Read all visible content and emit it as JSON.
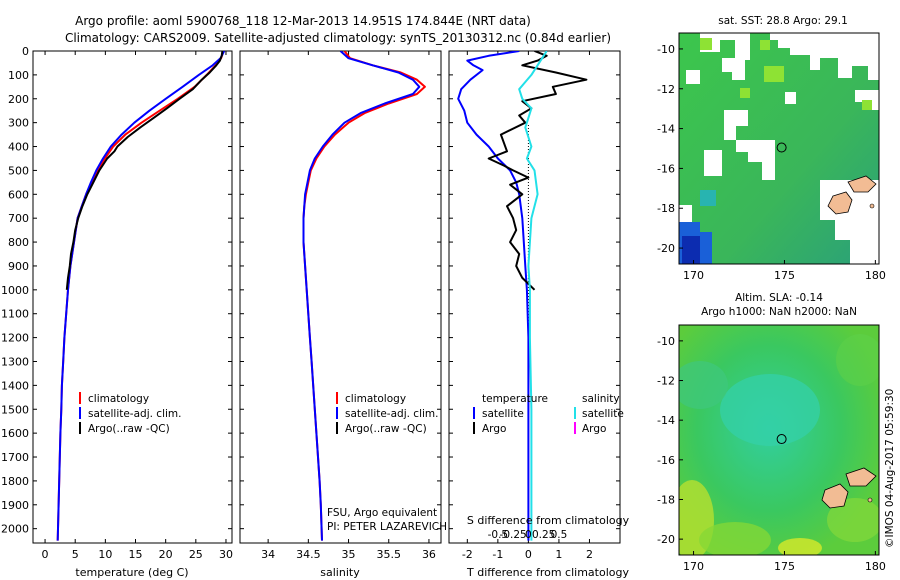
{
  "title": {
    "line1": "Argo profile: aoml 5900768_118 12-Mar-2013 14.951S 174.844E (NRT data)",
    "line2": "Climatology: CARS2009. Satellite-adjusted climatology: synTS_20130312.nc (0.84d earlier)"
  },
  "colors": {
    "climatology": "#ff0000",
    "satellite": "#0000ff",
    "argo": "#000000",
    "sal_satellite": "#22e0e8",
    "sal_argo": "#ff00ff"
  },
  "chart_data": [
    {
      "type": "line",
      "id": "temperature",
      "xlabel": "temperature (deg C)",
      "xlim": [
        -2,
        31
      ],
      "xticks": [
        0,
        5,
        10,
        15,
        20,
        25,
        30
      ],
      "ylim": [
        2060,
        0
      ],
      "yticks": [
        0,
        100,
        200,
        300,
        400,
        500,
        600,
        700,
        800,
        900,
        1000,
        1100,
        1200,
        1300,
        1400,
        1500,
        1600,
        1700,
        1800,
        1900,
        2000
      ],
      "legend": {
        "position": "bottom-right",
        "entries": [
          "climatology",
          "satellite-adj. clim.",
          "Argo(..raw -QC)"
        ]
      },
      "series": [
        {
          "name": "climatology",
          "color": "#ff0000",
          "points": [
            [
              29.6,
              0
            ],
            [
              29.2,
              30
            ],
            [
              28.3,
              60
            ],
            [
              26.8,
              100
            ],
            [
              24.8,
              150
            ],
            [
              22,
              200
            ],
            [
              19,
              250
            ],
            [
              16,
              300
            ],
            [
              13.3,
              350
            ],
            [
              11.3,
              400
            ],
            [
              9.9,
              450
            ],
            [
              8.7,
              500
            ],
            [
              7.7,
              550
            ],
            [
              6.8,
              600
            ],
            [
              6.1,
              650
            ],
            [
              5.4,
              700
            ],
            [
              4.8,
              800
            ],
            [
              4.2,
              900
            ],
            [
              3.8,
              1000
            ],
            [
              3.5,
              1100
            ],
            [
              3.2,
              1200
            ],
            [
              3,
              1300
            ],
            [
              2.8,
              1400
            ],
            [
              2.7,
              1500
            ],
            [
              2.55,
              1600
            ],
            [
              2.45,
              1700
            ],
            [
              2.35,
              1800
            ],
            [
              2.25,
              1900
            ],
            [
              2.15,
              2000
            ],
            [
              2.1,
              2050
            ]
          ]
        },
        {
          "name": "satellite-adj. clim.",
          "color": "#0000ff",
          "points": [
            [
              29.7,
              0
            ],
            [
              29.1,
              30
            ],
            [
              27.8,
              60
            ],
            [
              25.5,
              100
            ],
            [
              22.8,
              150
            ],
            [
              20,
              200
            ],
            [
              17.3,
              250
            ],
            [
              14.8,
              300
            ],
            [
              12.7,
              350
            ],
            [
              10.9,
              400
            ],
            [
              9.6,
              450
            ],
            [
              8.5,
              500
            ],
            [
              7.6,
              550
            ],
            [
              6.8,
              600
            ],
            [
              6.1,
              650
            ],
            [
              5.4,
              700
            ],
            [
              4.8,
              800
            ],
            [
              4.2,
              900
            ],
            [
              3.8,
              1000
            ],
            [
              3.5,
              1100
            ],
            [
              3.2,
              1200
            ],
            [
              3,
              1300
            ],
            [
              2.8,
              1400
            ],
            [
              2.7,
              1500
            ],
            [
              2.55,
              1600
            ],
            [
              2.45,
              1700
            ],
            [
              2.35,
              1800
            ],
            [
              2.25,
              1900
            ],
            [
              2.15,
              2000
            ],
            [
              2.1,
              2050
            ]
          ]
        },
        {
          "name": "Argo(..raw -QC)",
          "color": "#000000",
          "points": [
            [
              29.4,
              0
            ],
            [
              29.3,
              20
            ],
            [
              29,
              40
            ],
            [
              28.4,
              60
            ],
            [
              27.3,
              90
            ],
            [
              26,
              120
            ],
            [
              24.5,
              160
            ],
            [
              22.3,
              200
            ],
            [
              20.2,
              240
            ],
            [
              18,
              280
            ],
            [
              15.8,
              320
            ],
            [
              13.7,
              360
            ],
            [
              12,
              400
            ],
            [
              11.5,
              420
            ],
            [
              10.3,
              450
            ],
            [
              9,
              500
            ],
            [
              8,
              550
            ],
            [
              7,
              600
            ],
            [
              6.2,
              650
            ],
            [
              5.5,
              700
            ],
            [
              5,
              750
            ],
            [
              4.7,
              800
            ],
            [
              4.3,
              850
            ],
            [
              4.1,
              900
            ],
            [
              3.8,
              950
            ],
            [
              3.6,
              1000
            ]
          ]
        }
      ]
    },
    {
      "type": "line",
      "id": "salinity",
      "xlabel": "salinity",
      "xlim": [
        33.65,
        36.15
      ],
      "xticks": [
        34,
        34.5,
        35,
        35.5,
        36
      ],
      "ylim": [
        2060,
        0
      ],
      "legend": {
        "position": "bottom-right",
        "entries": [
          "climatology",
          "satellite-adj. clim.",
          "Argo(..raw -QC)"
        ]
      },
      "annotations": [
        "FSU, Argo equivalent",
        "PI: PETER LAZAREVICH"
      ],
      "series": [
        {
          "name": "climatology",
          "color": "#ff0000",
          "points": [
            [
              34.95,
              0
            ],
            [
              35.02,
              30
            ],
            [
              35.3,
              60
            ],
            [
              35.65,
              90
            ],
            [
              35.85,
              120
            ],
            [
              35.95,
              150
            ],
            [
              35.85,
              180
            ],
            [
              35.5,
              220
            ],
            [
              35.2,
              260
            ],
            [
              35,
              300
            ],
            [
              34.83,
              350
            ],
            [
              34.7,
              400
            ],
            [
              34.6,
              450
            ],
            [
              34.53,
              500
            ],
            [
              34.5,
              550
            ],
            [
              34.47,
              600
            ],
            [
              34.45,
              650
            ],
            [
              34.44,
              700
            ],
            [
              34.44,
              800
            ],
            [
              34.46,
              900
            ],
            [
              34.48,
              1000
            ],
            [
              34.5,
              1100
            ],
            [
              34.52,
              1200
            ],
            [
              34.54,
              1300
            ],
            [
              34.56,
              1400
            ],
            [
              34.58,
              1500
            ],
            [
              34.6,
              1600
            ],
            [
              34.62,
              1700
            ],
            [
              34.64,
              1800
            ],
            [
              34.655,
              1900
            ],
            [
              34.665,
              2000
            ],
            [
              34.67,
              2050
            ]
          ]
        },
        {
          "name": "satellite-adj. clim.",
          "color": "#0000ff",
          "points": [
            [
              34.9,
              0
            ],
            [
              35,
              30
            ],
            [
              35.3,
              60
            ],
            [
              35.62,
              90
            ],
            [
              35.8,
              120
            ],
            [
              35.88,
              150
            ],
            [
              35.8,
              180
            ],
            [
              35.45,
              220
            ],
            [
              35.15,
              260
            ],
            [
              34.95,
              300
            ],
            [
              34.8,
              350
            ],
            [
              34.68,
              400
            ],
            [
              34.58,
              450
            ],
            [
              34.52,
              500
            ],
            [
              34.49,
              550
            ],
            [
              34.46,
              600
            ],
            [
              34.45,
              650
            ],
            [
              34.44,
              700
            ],
            [
              34.44,
              800
            ],
            [
              34.46,
              900
            ],
            [
              34.48,
              1000
            ],
            [
              34.5,
              1100
            ],
            [
              34.52,
              1200
            ],
            [
              34.54,
              1300
            ],
            [
              34.56,
              1400
            ],
            [
              34.58,
              1500
            ],
            [
              34.6,
              1600
            ],
            [
              34.62,
              1700
            ],
            [
              34.64,
              1800
            ],
            [
              34.655,
              1900
            ],
            [
              34.665,
              2000
            ],
            [
              34.67,
              2050
            ]
          ]
        }
      ]
    },
    {
      "type": "line",
      "id": "difference",
      "xlabel": "T difference from climatology",
      "x2label": "S difference from climatology",
      "xlim": [
        -2.6,
        3
      ],
      "xticks": [
        -2,
        -1,
        0,
        1,
        2
      ],
      "x2ticks": [
        -0.5,
        -0.25,
        0,
        0.25,
        0.5
      ],
      "ylim": [
        2060,
        0
      ],
      "legend": {
        "position": "bottom",
        "headers": [
          "temperature",
          "salinity"
        ],
        "entries": [
          "satellite",
          "Argo",
          "satellite",
          "Argo"
        ]
      },
      "series": [
        {
          "name": "temperature satellite",
          "color": "#0000ff",
          "points": [
            [
              -0.3,
              0
            ],
            [
              -1.3,
              20
            ],
            [
              -2.0,
              40
            ],
            [
              -1.8,
              60
            ],
            [
              -1.5,
              80
            ],
            [
              -1.9,
              120
            ],
            [
              -2.2,
              160
            ],
            [
              -2.3,
              200
            ],
            [
              -2.1,
              250
            ],
            [
              -2.0,
              300
            ],
            [
              -1.7,
              350
            ],
            [
              -1.3,
              400
            ],
            [
              -1.0,
              450
            ],
            [
              -0.6,
              500
            ],
            [
              -0.4,
              550
            ],
            [
              -0.3,
              600
            ],
            [
              -0.2,
              700
            ],
            [
              -0.15,
              800
            ],
            [
              -0.1,
              900
            ],
            [
              -0.05,
              1000
            ],
            [
              0,
              1200
            ],
            [
              0,
              1500
            ],
            [
              0,
              2000
            ],
            [
              0,
              2050
            ]
          ]
        },
        {
          "name": "temperature Argo",
          "color": "#000000",
          "points": [
            [
              0.2,
              0
            ],
            [
              0.6,
              20
            ],
            [
              0.3,
              40
            ],
            [
              -0.2,
              60
            ],
            [
              0.9,
              90
            ],
            [
              1.9,
              120
            ],
            [
              0.8,
              150
            ],
            [
              0.9,
              180
            ],
            [
              -0.2,
              210
            ],
            [
              0.1,
              240
            ],
            [
              -0.3,
              270
            ],
            [
              -0.1,
              300
            ],
            [
              -0.9,
              350
            ],
            [
              -0.7,
              420
            ],
            [
              -1.3,
              450
            ],
            [
              -0.8,
              480
            ],
            [
              -0.5,
              500
            ],
            [
              0,
              530
            ],
            [
              -0.6,
              560
            ],
            [
              -0.2,
              600
            ],
            [
              -0.7,
              650
            ],
            [
              -0.5,
              700
            ],
            [
              -0.4,
              750
            ],
            [
              -0.6,
              800
            ],
            [
              -0.3,
              850
            ],
            [
              -0.4,
              900
            ],
            [
              -0.2,
              950
            ],
            [
              0.2,
              1000
            ]
          ]
        },
        {
          "name": "salinity satellite",
          "color": "#22e0e8",
          "points": [
            [
              0.6,
              0
            ],
            [
              0.5,
              20
            ],
            [
              0.4,
              40
            ],
            [
              0.3,
              60
            ],
            [
              0.2,
              80
            ],
            [
              0.1,
              100
            ],
            [
              -0.1,
              130
            ],
            [
              -0.3,
              160
            ],
            [
              -0.2,
              200
            ],
            [
              0.1,
              240
            ],
            [
              0.0,
              280
            ],
            [
              -0.1,
              320
            ],
            [
              0.1,
              400
            ],
            [
              -0.05,
              450
            ],
            [
              0.2,
              500
            ],
            [
              0.3,
              600
            ],
            [
              0.1,
              700
            ],
            [
              0.05,
              800
            ],
            [
              0,
              900
            ],
            [
              0.05,
              1000
            ],
            [
              0.05,
              1200
            ],
            [
              0.1,
              1500
            ],
            [
              0.1,
              2000
            ],
            [
              0.1,
              2050
            ]
          ]
        }
      ]
    }
  ],
  "maps": [
    {
      "id": "sst",
      "title": "sat. SST: 28.8  Argo: 29.1",
      "xticks": [
        170,
        175,
        180
      ],
      "yticks": [
        -10,
        -12,
        -14,
        -16,
        -18,
        -20
      ],
      "xlim": [
        169.2,
        180.2
      ],
      "ylim": [
        -20.8,
        -9.2
      ],
      "marker": [
        174.844,
        -14.951
      ]
    },
    {
      "id": "sla",
      "title_line1": "Altim. SLA: -0.14",
      "title_line2": "Argo h1000: NaN h2000: NaN",
      "xticks": [
        170,
        175,
        180
      ],
      "yticks": [
        -10,
        -12,
        -14,
        -16,
        -18,
        -20
      ],
      "xlim": [
        169.2,
        180.2
      ],
      "ylim": [
        -20.8,
        -9.2
      ],
      "marker": [
        174.844,
        -14.951
      ]
    }
  ],
  "timestamp": "©IMOS 04-Aug-2017 05:59:30"
}
